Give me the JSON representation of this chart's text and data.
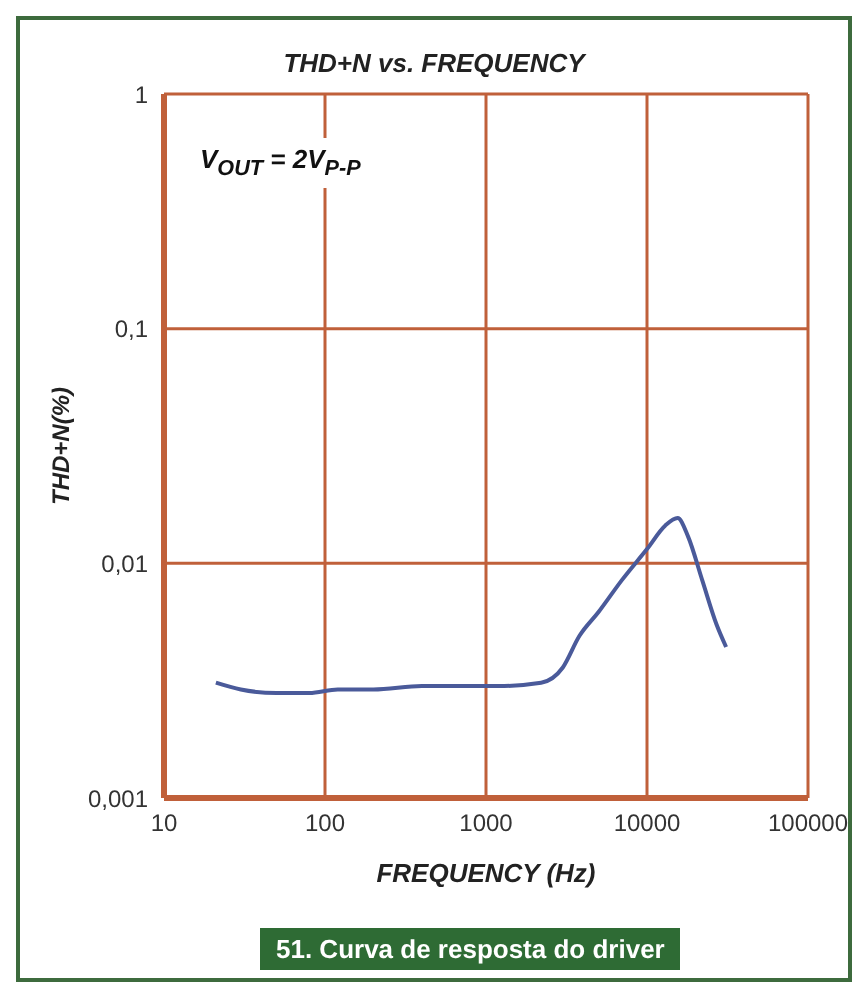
{
  "chart_data": {
    "type": "line",
    "title": "THD+N vs. FREQUENCY",
    "xlabel": "FREQUENCY (Hz)",
    "ylabel": "THD+N(%)",
    "annotations": [
      "V$_{OUT}$ = 2V$_{P-P}$",
      "51. Curva de resposta do driver"
    ],
    "log": "xy",
    "grid": true,
    "legend": false,
    "marker": "none",
    "line_style": "solid",
    "xlim": [
      10,
      100000
    ],
    "xticks": [
      10,
      100,
      1000,
      10000,
      100000
    ],
    "ylim": [
      0.001,
      1
    ],
    "yticks": [
      {
        "value": 0.001,
        "label": "0,001"
      },
      {
        "value": 0.01,
        "label": "0,01"
      },
      {
        "value": 0.1,
        "label": "0,1"
      },
      1
    ],
    "series": [
      {
        "color": "#4a5a9a",
        "x": [
          21,
          30,
          50,
          80,
          120,
          200,
          400,
          700,
          1200,
          2200,
          3000,
          3800,
          5000,
          7000,
          10000,
          13000,
          15500,
          18000,
          22000,
          27000,
          31000
        ],
        "values": [
          0.0031,
          0.0029,
          0.0028,
          0.0028,
          0.0029,
          0.0029,
          0.003,
          0.003,
          0.003,
          0.0031,
          0.0036,
          0.0049,
          0.0062,
          0.0085,
          0.0115,
          0.0145,
          0.0156,
          0.013,
          0.0085,
          0.0055,
          0.0044
        ]
      }
    ]
  }
}
